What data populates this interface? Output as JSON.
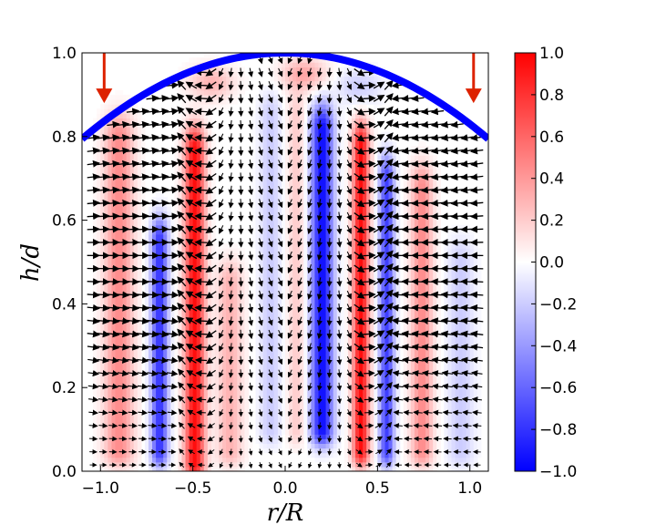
{
  "chart_data": {
    "type": "heatmap",
    "overlay": "vector-field",
    "xlabel": "r/R",
    "ylabel": "h/d",
    "xlim": [
      -1.1,
      1.1
    ],
    "ylim": [
      0.0,
      1.0
    ],
    "x_ticks": [
      -1.0,
      -0.5,
      0.0,
      0.5,
      1.0
    ],
    "x_tick_labels": [
      "−1.0",
      "−0.5",
      "0.0",
      "0.5",
      "1.0"
    ],
    "y_ticks": [
      0.0,
      0.2,
      0.4,
      0.6,
      0.8,
      1.0
    ],
    "y_tick_labels": [
      "0.0",
      "0.2",
      "0.4",
      "0.6",
      "0.8",
      "1.0"
    ],
    "colorbar": {
      "range": [
        -1.0,
        1.0
      ],
      "colormap": "bwr",
      "ticks": [
        1.0,
        0.8,
        0.6,
        0.4,
        0.2,
        0.0,
        -0.2,
        -0.4,
        -0.6,
        -0.8,
        -1.0
      ],
      "tick_labels": [
        "1.0",
        "0.8",
        "0.6",
        "0.4",
        "0.2",
        "0.0",
        "−0.2",
        "−0.4",
        "−0.6",
        "−0.8",
        "−1.0"
      ]
    },
    "bands": [
      {
        "r": -0.9,
        "value": 0.45,
        "width": 0.08,
        "h_start": 0.05,
        "h_end": 0.8
      },
      {
        "r": -0.68,
        "value": -0.8,
        "width": 0.045,
        "h_start": 0.05,
        "h_end": 0.55
      },
      {
        "r": -0.49,
        "value": 0.95,
        "width": 0.055,
        "h_start": 0.02,
        "h_end": 0.77
      },
      {
        "r": -0.3,
        "value": 0.3,
        "width": 0.07,
        "h_start": 0.05,
        "h_end": 0.45
      },
      {
        "r": -0.08,
        "value": -0.2,
        "width": 0.06,
        "h_start": 0.1,
        "h_end": 0.85
      },
      {
        "r": 0.06,
        "value": 0.2,
        "width": 0.05,
        "h_start": 0.1,
        "h_end": 0.85
      },
      {
        "r": 0.2,
        "value": -0.95,
        "width": 0.06,
        "h_start": 0.1,
        "h_end": 0.82
      },
      {
        "r": 0.41,
        "value": 0.95,
        "width": 0.045,
        "h_start": 0.05,
        "h_end": 0.78
      },
      {
        "r": 0.55,
        "value": -0.75,
        "width": 0.04,
        "h_start": 0.05,
        "h_end": 0.7
      },
      {
        "r": 0.74,
        "value": 0.45,
        "width": 0.06,
        "h_start": 0.05,
        "h_end": 0.68
      },
      {
        "r": 0.95,
        "value": -0.2,
        "width": 0.07,
        "h_start": 0.05,
        "h_end": 0.5
      }
    ],
    "top_patches": [
      {
        "r": -0.4,
        "h": 0.93,
        "value": 0.3
      },
      {
        "r": 0.1,
        "h": 0.95,
        "value": 0.35
      },
      {
        "r": 0.4,
        "h": 0.92,
        "value": -0.2
      }
    ],
    "free_surface": {
      "shape": "parabolic",
      "h_at_center": 1.0,
      "h_at_edge": 0.83,
      "color": "#0000ff"
    },
    "markers": [
      {
        "type": "arrow-down",
        "r": -0.98,
        "h_from": 1.0,
        "h_to": 0.88,
        "color": "#dd2200"
      },
      {
        "type": "arrow-down",
        "r": 1.02,
        "h_from": 1.0,
        "h_to": 0.88,
        "color": "#dd2200"
      }
    ]
  }
}
